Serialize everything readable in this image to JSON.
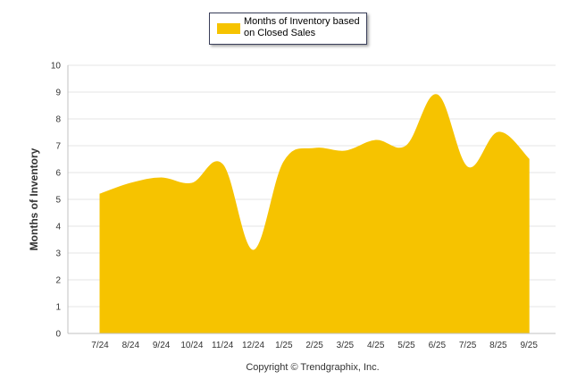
{
  "chart_data": {
    "type": "area",
    "categories": [
      "7/24",
      "8/24",
      "9/24",
      "10/24",
      "11/24",
      "12/24",
      "1/25",
      "2/25",
      "3/25",
      "4/25",
      "5/25",
      "6/25",
      "7/25",
      "8/25",
      "9/25"
    ],
    "series": [
      {
        "name": "Months of Inventory based on Closed Sales",
        "values": [
          5.2,
          5.6,
          5.8,
          5.6,
          6.3,
          3.1,
          6.4,
          6.9,
          6.8,
          7.2,
          7.0,
          8.9,
          6.2,
          7.5,
          6.5
        ],
        "color": "#f6c300"
      }
    ],
    "title": "",
    "xlabel": "",
    "ylabel": "Months of Inventory",
    "ylim": [
      0,
      10
    ],
    "yticks": [
      "0",
      "1",
      "2",
      "3",
      "4",
      "5",
      "6",
      "7",
      "8",
      "9",
      "10"
    ],
    "grid": true,
    "legend": "top-center",
    "credit": "Copyright © Trendgraphix, Inc."
  }
}
